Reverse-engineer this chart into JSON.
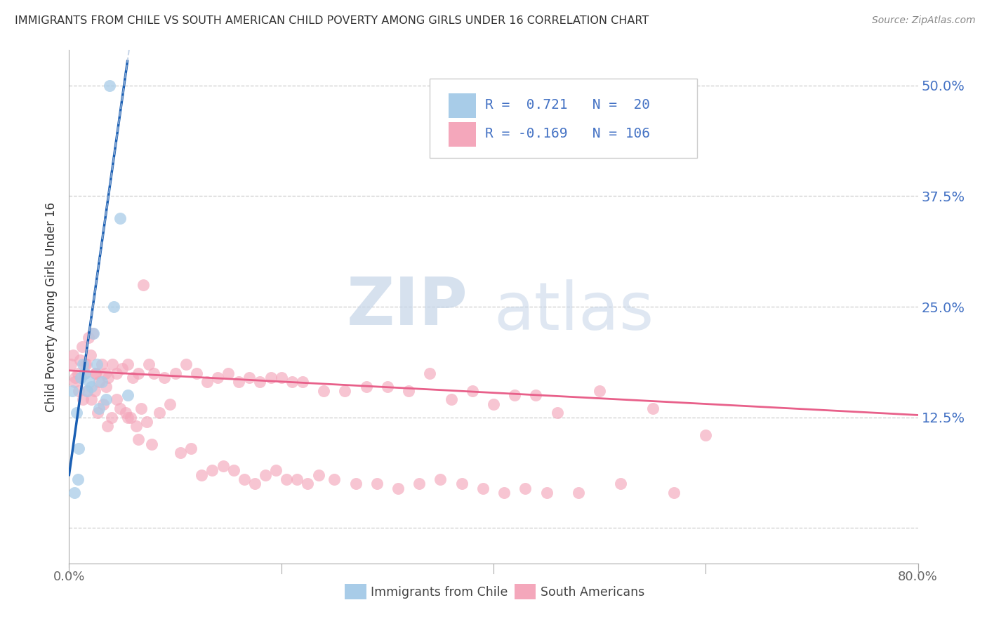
{
  "title": "IMMIGRANTS FROM CHILE VS SOUTH AMERICAN CHILD POVERTY AMONG GIRLS UNDER 16 CORRELATION CHART",
  "source": "Source: ZipAtlas.com",
  "ylabel": "Child Poverty Among Girls Under 16",
  "ytick_values": [
    0.0,
    0.125,
    0.25,
    0.375,
    0.5
  ],
  "xlim": [
    0.0,
    0.8
  ],
  "ylim": [
    -0.04,
    0.54
  ],
  "watermark_zip": "ZIP",
  "watermark_atlas": "atlas",
  "color_blue": "#a8cce8",
  "color_pink": "#f4a7bb",
  "trendline_blue": "#1a5fb4",
  "trendline_pink": "#e8608a",
  "trendline_blue_dashed": "#b0c4de",
  "background": "#ffffff",
  "grid_color": "#c8c8c8",
  "blue_scatter_x": [
    0.003,
    0.005,
    0.007,
    0.008,
    0.009,
    0.011,
    0.013,
    0.015,
    0.017,
    0.019,
    0.021,
    0.023,
    0.026,
    0.028,
    0.031,
    0.035,
    0.038,
    0.042,
    0.048,
    0.055
  ],
  "blue_scatter_y": [
    0.155,
    0.04,
    0.13,
    0.055,
    0.09,
    0.17,
    0.185,
    0.175,
    0.155,
    0.165,
    0.16,
    0.22,
    0.185,
    0.135,
    0.165,
    0.145,
    0.5,
    0.25,
    0.35,
    0.15
  ],
  "pink_scatter_x": [
    0.002,
    0.004,
    0.006,
    0.008,
    0.01,
    0.012,
    0.014,
    0.016,
    0.018,
    0.02,
    0.022,
    0.025,
    0.028,
    0.031,
    0.034,
    0.037,
    0.041,
    0.045,
    0.05,
    0.055,
    0.06,
    0.065,
    0.07,
    0.075,
    0.08,
    0.09,
    0.1,
    0.11,
    0.12,
    0.13,
    0.14,
    0.15,
    0.16,
    0.17,
    0.18,
    0.19,
    0.2,
    0.21,
    0.22,
    0.24,
    0.26,
    0.28,
    0.3,
    0.32,
    0.34,
    0.36,
    0.38,
    0.4,
    0.42,
    0.44,
    0.46,
    0.5,
    0.55,
    0.6,
    0.005,
    0.009,
    0.013,
    0.017,
    0.021,
    0.024,
    0.027,
    0.032,
    0.036,
    0.04,
    0.048,
    0.053,
    0.058,
    0.063,
    0.068,
    0.073,
    0.078,
    0.085,
    0.095,
    0.105,
    0.115,
    0.125,
    0.135,
    0.145,
    0.155,
    0.165,
    0.175,
    0.185,
    0.195,
    0.205,
    0.215,
    0.225,
    0.235,
    0.25,
    0.27,
    0.29,
    0.31,
    0.33,
    0.35,
    0.37,
    0.39,
    0.41,
    0.43,
    0.45,
    0.48,
    0.52,
    0.57,
    0.015,
    0.025,
    0.035,
    0.045,
    0.055,
    0.065
  ],
  "pink_scatter_y": [
    0.185,
    0.195,
    0.17,
    0.175,
    0.19,
    0.205,
    0.175,
    0.185,
    0.215,
    0.195,
    0.22,
    0.175,
    0.165,
    0.185,
    0.175,
    0.17,
    0.185,
    0.175,
    0.18,
    0.185,
    0.17,
    0.175,
    0.275,
    0.185,
    0.175,
    0.17,
    0.175,
    0.185,
    0.175,
    0.165,
    0.17,
    0.175,
    0.165,
    0.17,
    0.165,
    0.17,
    0.17,
    0.165,
    0.165,
    0.155,
    0.155,
    0.16,
    0.16,
    0.155,
    0.175,
    0.145,
    0.155,
    0.14,
    0.15,
    0.15,
    0.13,
    0.155,
    0.135,
    0.105,
    0.165,
    0.155,
    0.145,
    0.155,
    0.145,
    0.155,
    0.13,
    0.14,
    0.115,
    0.125,
    0.135,
    0.13,
    0.125,
    0.115,
    0.135,
    0.12,
    0.095,
    0.13,
    0.14,
    0.085,
    0.09,
    0.06,
    0.065,
    0.07,
    0.065,
    0.055,
    0.05,
    0.06,
    0.065,
    0.055,
    0.055,
    0.05,
    0.06,
    0.055,
    0.05,
    0.05,
    0.045,
    0.05,
    0.055,
    0.05,
    0.045,
    0.04,
    0.045,
    0.04,
    0.04,
    0.05,
    0.04,
    0.185,
    0.175,
    0.16,
    0.145,
    0.125,
    0.1
  ]
}
